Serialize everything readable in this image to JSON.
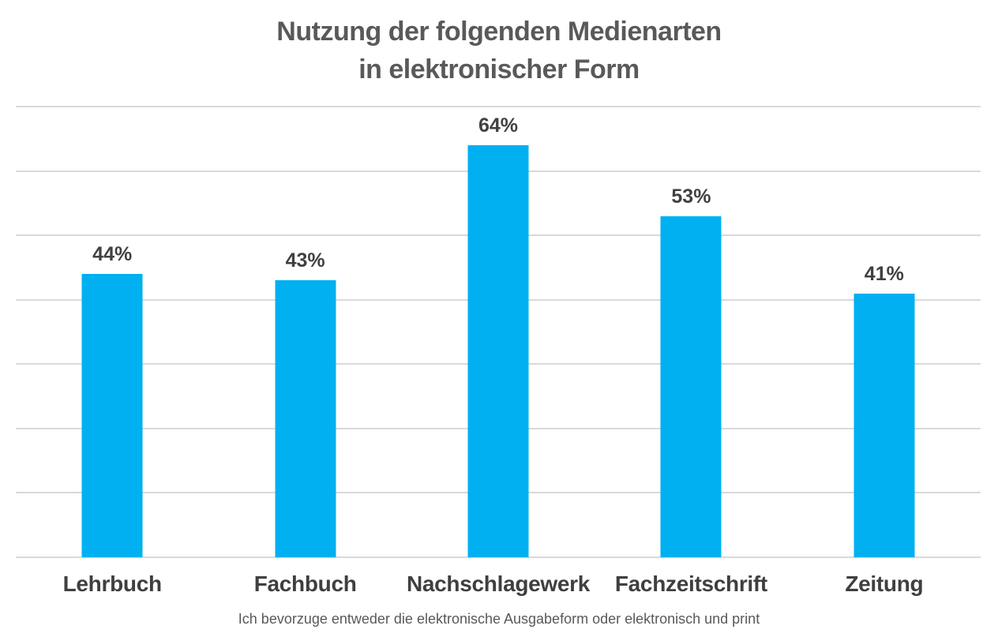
{
  "chart_data": {
    "type": "bar",
    "title": "Nutzung der folgenden Medienarten in elektronischer Form",
    "title_lines": [
      "Nutzung der folgenden Medienarten",
      "in elektronischer Form"
    ],
    "categories": [
      "Lehrbuch",
      "Fachbuch",
      "Nachschlagewerk",
      "Fachzeitschrift",
      "Zeitung"
    ],
    "values": [
      44,
      43,
      64,
      53,
      41
    ],
    "data_labels": [
      "44%",
      "43%",
      "64%",
      "53%",
      "41%"
    ],
    "footnote": "Ich bevorzuge entweder die elektronische Ausgabeform oder elektronisch und print",
    "xlabel": "",
    "ylabel": "",
    "ylim": [
      0,
      70
    ],
    "gridline_step": 10,
    "grid": true,
    "legend": false,
    "colors": {
      "bar": "#00B0F0",
      "title": "#595959",
      "data_label": "#404040",
      "category_label": "#3f3f3f",
      "gridline": "#d9d9d9",
      "footnote": "#595959"
    }
  }
}
